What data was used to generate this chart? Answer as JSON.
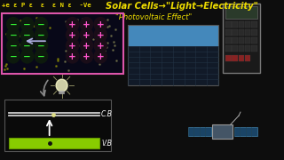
{
  "bg_color": "#0d0d0d",
  "title_text": "Solar Cells→\"Light→Electricity\"",
  "subtitle_text": "\"Photovoltaic Effect\"",
  "header_text": "+e ε P ε  ε  ε N ε  -Ve",
  "cb_label": "C.B",
  "vb_label": "V.B",
  "cb_line_color": "#cccccc",
  "vb_rect_color": "#88cc00",
  "vb_rect_edge": "#669900",
  "pn_border_color": "#dd55aa",
  "text_color_yellow": "#eedd00",
  "text_color_white": "#ffffff",
  "p_circle_color": "#33ee33",
  "n_circle_color": "#ff55cc",
  "dot_color_cb": "#dddd88",
  "dot_color_vb": "#111111"
}
